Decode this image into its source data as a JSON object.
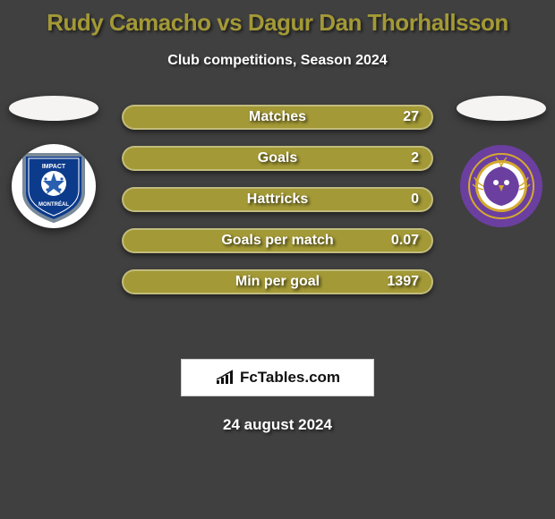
{
  "header": {
    "player_a": "Rudy Camacho",
    "vs": "vs",
    "player_b": "Dagur Dan Thorhallsson",
    "subtitle": "Club competitions, Season 2024",
    "title_color": "#a39936"
  },
  "colors": {
    "bar": "#a39936",
    "bar_inner_border": "rgba(255,255,255,0.35)",
    "background": "#404040",
    "photo_bg": "#f5f4f2"
  },
  "stats": [
    {
      "label": "Matches",
      "value": "27"
    },
    {
      "label": "Goals",
      "value": "2"
    },
    {
      "label": "Hattricks",
      "value": "0"
    },
    {
      "label": "Goals per match",
      "value": "0.07"
    },
    {
      "label": "Min per goal",
      "value": "1397"
    }
  ],
  "teams": {
    "left": {
      "name": "Montreal Impact",
      "crest_colors": {
        "shield": "#0d3b8c",
        "accent": "#7a8a99",
        "white": "#ffffff",
        "text": "#ffffff"
      }
    },
    "right": {
      "name": "Orlando City",
      "crest_colors": {
        "ring": "#6b3fa0",
        "gold": "#d4a92f",
        "white": "#ffffff"
      }
    }
  },
  "branding": {
    "text": "FcTables.com"
  },
  "date": "24 august 2024"
}
